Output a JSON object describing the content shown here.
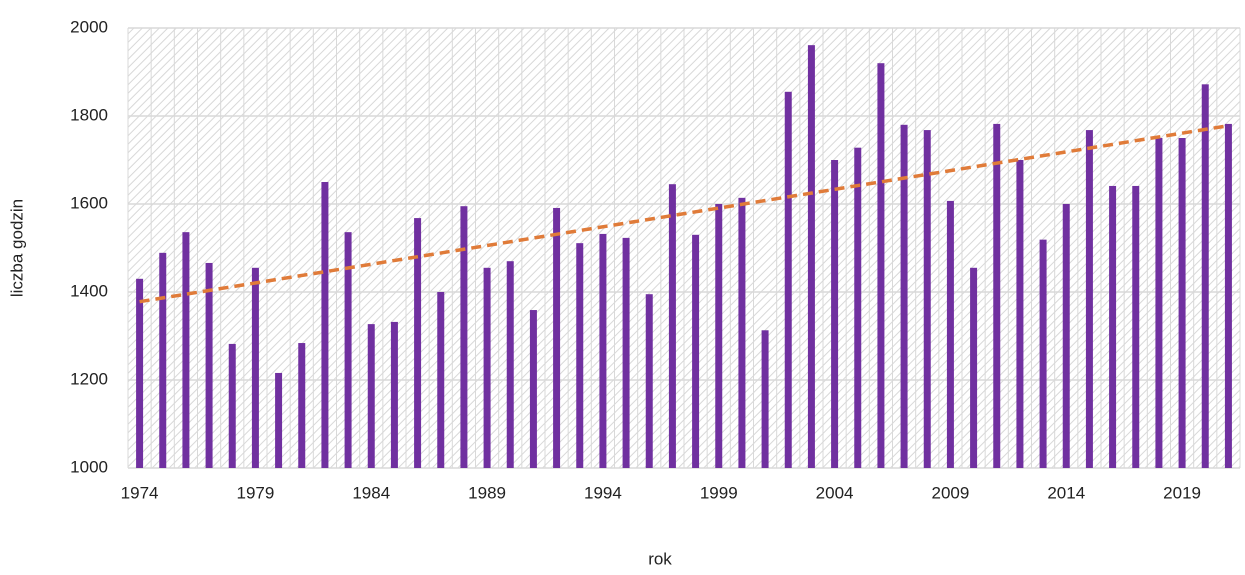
{
  "chart_data": {
    "type": "bar",
    "x_label": "rok",
    "y_label": "liczba godzin",
    "categories": [
      "1974",
      null,
      null,
      null,
      null,
      "1979",
      null,
      null,
      null,
      null,
      "1984",
      null,
      null,
      null,
      null,
      "1989",
      null,
      null,
      null,
      null,
      "1994",
      null,
      null,
      null,
      null,
      "1999",
      null,
      null,
      null,
      null,
      "2004",
      null,
      null,
      null,
      null,
      "2009",
      null,
      null,
      null,
      null,
      "2014",
      null,
      null,
      null,
      null,
      "2019",
      null,
      null
    ],
    "values": [
      1430,
      1489,
      1536,
      1466,
      1282,
      1455,
      1216,
      1284,
      1650,
      1536,
      1327,
      1332,
      1568,
      1400,
      1595,
      1455,
      1470,
      1359,
      1591,
      1511,
      1532,
      1523,
      1395,
      1645,
      1530,
      1600,
      1614,
      1313,
      1855,
      1961,
      1700,
      1728,
      1920,
      1780,
      1768,
      1607,
      1455,
      1782,
      1700,
      1519,
      1600,
      1768,
      1641,
      1641,
      1750,
      1750,
      1872,
      1782
    ],
    "color": "#7030a0",
    "trendline": {
      "color": "#e07b39",
      "values": [
        1378,
        1778
      ]
    },
    "ylim": [
      1000,
      2000
    ],
    "yticks": [
      1000,
      1200,
      1400,
      1600,
      1800,
      2000
    ],
    "grid": true
  }
}
